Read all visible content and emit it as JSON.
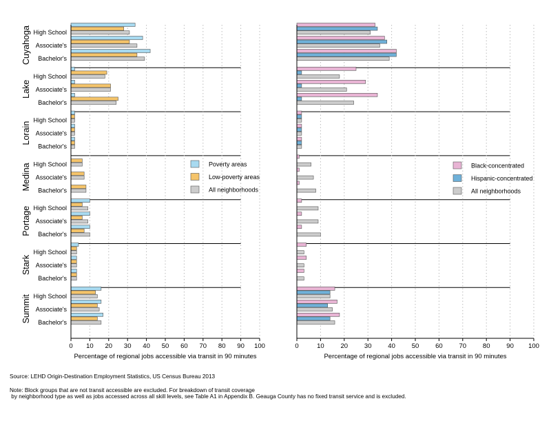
{
  "chart_data": {
    "type": "bar",
    "orientation": "horizontal",
    "counties": [
      "Cuyahoga",
      "Lake",
      "Lorain",
      "Medina",
      "Portage",
      "Stark",
      "Summit"
    ],
    "skills": [
      "High School",
      "Associate's",
      "Bachelor's"
    ],
    "xlim": [
      0,
      100
    ],
    "xticks": [
      0,
      10,
      20,
      30,
      40,
      50,
      60,
      70,
      80,
      90,
      100
    ],
    "grid": "dotted vertical",
    "panels": [
      {
        "xlabel": "Percentage of regional jobs accessible via transit in 90 minutes",
        "legend_position": "in Medina row",
        "series": [
          {
            "name": "Poverty areas",
            "color": "#a8daf0",
            "values": [
              [
                34,
                38,
                42
              ],
              [
                2,
                2,
                2
              ],
              [
                2,
                2,
                2
              ],
              [
                0,
                0,
                0
              ],
              [
                10,
                10,
                10
              ],
              [
                4,
                3,
                3
              ],
              [
                16,
                16,
                17
              ]
            ]
          },
          {
            "name": "Low-poverty areas",
            "color": "#f5c46a",
            "values": [
              [
                28,
                31,
                35
              ],
              [
                19,
                21,
                25
              ],
              [
                2,
                2,
                2
              ],
              [
                6,
                7,
                8
              ],
              [
                6,
                6,
                7
              ],
              [
                3,
                3,
                3
              ],
              [
                13,
                14,
                14
              ]
            ]
          },
          {
            "name": "All neighborhoods",
            "color": "#cccccc",
            "values": [
              [
                31,
                35,
                39
              ],
              [
                18,
                21,
                24
              ],
              [
                2,
                2,
                2
              ],
              [
                6,
                7,
                8
              ],
              [
                9,
                9,
                10
              ],
              [
                3,
                3,
                3
              ],
              [
                14,
                15,
                16
              ]
            ]
          }
        ]
      },
      {
        "xlabel": "Percentage of regional jobs accessible via transit in 90 minutes",
        "legend_position": "in Medina row",
        "series": [
          {
            "name": "Black-concentrated",
            "color": "#e8b4d4",
            "values": [
              [
                33,
                37,
                42
              ],
              [
                25,
                29,
                34
              ],
              [
                2,
                2,
                2
              ],
              [
                1,
                1,
                1
              ],
              [
                2,
                2,
                2
              ],
              [
                4,
                4,
                3
              ],
              [
                16,
                17,
                18
              ]
            ]
          },
          {
            "name": "Hispanic-concentrated",
            "color": "#6fb1d9",
            "values": [
              [
                34,
                38,
                42
              ],
              [
                2,
                2,
                2
              ],
              [
                2,
                2,
                2
              ],
              [
                0,
                0,
                0
              ],
              [
                0,
                0,
                0
              ],
              [
                0,
                0,
                0
              ],
              [
                14,
                13,
                14
              ]
            ]
          },
          {
            "name": "All neighborhoods",
            "color": "#cccccc",
            "values": [
              [
                31,
                35,
                39
              ],
              [
                18,
                21,
                24
              ],
              [
                2,
                2,
                2
              ],
              [
                6,
                7,
                8
              ],
              [
                9,
                9,
                10
              ],
              [
                3,
                3,
                3
              ],
              [
                14,
                15,
                16
              ]
            ]
          }
        ]
      }
    ]
  },
  "source": "Source: LEHD Origin-Destination Employment Statistics, US Census Bureau 2013",
  "note_line1": "Note: Block groups that are not transit accessible are excluded. For breakdown of transit coverage",
  "note_line2": " by neighborhood type as well as jobs accessed across all skill levels, see Table A1 in Appendix B. Geauga County has no fixed transit service and is excluded."
}
